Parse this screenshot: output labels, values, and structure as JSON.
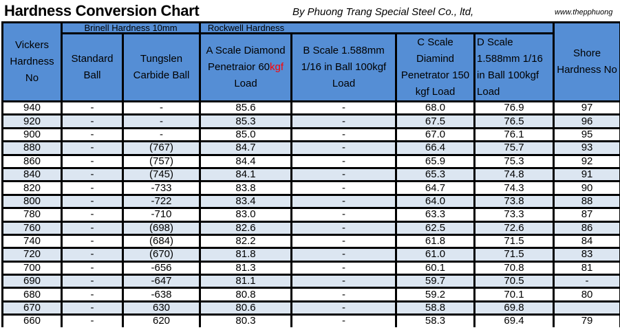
{
  "title": "Hardness Conversion Chart",
  "byline": "By Phuong Trang Special Steel Co., ltd,",
  "website": "www.thepphuong",
  "colors": {
    "header_bg": "#558ed5",
    "stripe": "#dce6f1",
    "highlight": "#ff0000"
  },
  "headers": {
    "vickers": "Vickers Hardness No",
    "brinell_group": "Brinell Hardness 10mm",
    "rockwell_group": "Rockwell Hardness",
    "standard_ball": "Standard Ball",
    "tungsten": "Tungslen Carbide Ball",
    "a_scale_pre": "A Scale Diamond Penetraior 60",
    "a_scale_red": "kgf",
    "a_scale_post": " Load",
    "b_scale": "B Scale 1.588mm 1/16 in Ball 100kgf Load",
    "c_scale": "C Scale Diamind Penetrator 150 kgf Load",
    "d_scale": "D Scale 1.588mm 1/16 in Ball 100kgf Load",
    "shore": "Shore Hardness No"
  },
  "rows": [
    [
      "940",
      "-",
      "-",
      "85.6",
      "-",
      "68.0",
      "76.9",
      "97"
    ],
    [
      "920",
      "-",
      "-",
      "85.3",
      "-",
      "67.5",
      "76.5",
      "96"
    ],
    [
      "900",
      "-",
      "-",
      "85.0",
      "-",
      "67.0",
      "76.1",
      "95"
    ],
    [
      "880",
      "-",
      "(767)",
      "84.7",
      "-",
      "66.4",
      "75.7",
      "93"
    ],
    [
      "860",
      "-",
      "(757)",
      "84.4",
      "-",
      "65.9",
      "75.3",
      "92"
    ],
    [
      "840",
      "-",
      "(745)",
      "84.1",
      "-",
      "65.3",
      "74.8",
      "91"
    ],
    [
      "820",
      "-",
      "-733",
      "83.8",
      "-",
      "64.7",
      "74.3",
      "90"
    ],
    [
      "800",
      "-",
      "-722",
      "83.4",
      "-",
      "64.0",
      "73.8",
      "88"
    ],
    [
      "780",
      "-",
      "-710",
      "83.0",
      "-",
      "63.3",
      "73.3",
      "87"
    ],
    [
      "760",
      "-",
      "(698)",
      "82.6",
      "-",
      "62.5",
      "72.6",
      "86"
    ],
    [
      "740",
      "-",
      "(684)",
      "82.2",
      "-",
      "61.8",
      "71.5",
      "84"
    ],
    [
      "720",
      "-",
      "(670)",
      "81.8",
      "-",
      "61.0",
      "71.5",
      "83"
    ],
    [
      "700",
      "-",
      "-656",
      "81.3",
      "-",
      "60.1",
      "70.8",
      "81"
    ],
    [
      "690",
      "-",
      "-647",
      "81.1",
      "-",
      "59.7",
      "70.5",
      "-"
    ],
    [
      "680",
      "-",
      "-638",
      "80.8",
      "-",
      "59.2",
      "70.1",
      "80"
    ],
    [
      "670",
      "-",
      "630",
      "80.6",
      "-",
      "58.8",
      "69.8",
      ""
    ],
    [
      "660",
      "-",
      "620",
      "80.3",
      "-",
      "58.3",
      "69.4",
      "79"
    ]
  ]
}
